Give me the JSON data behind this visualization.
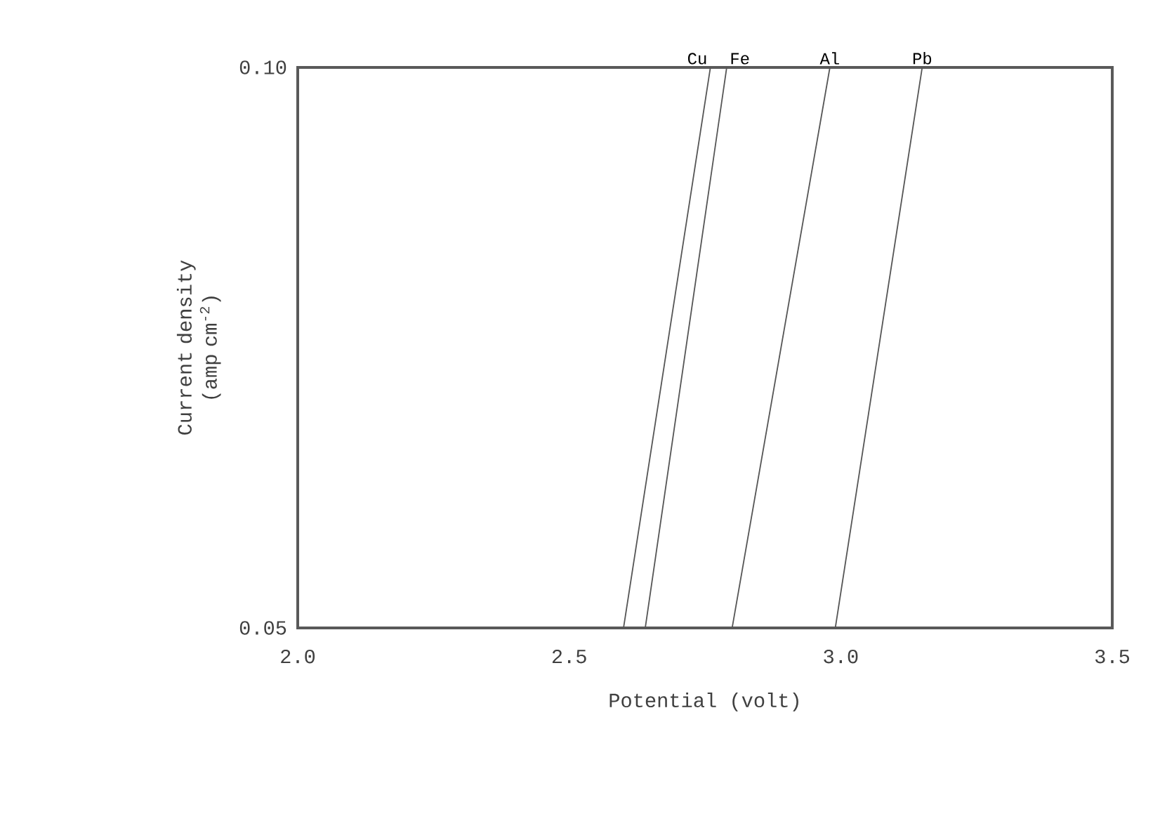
{
  "chart_data": {
    "type": "line",
    "xlabel": "Potential (volt)",
    "ylabel": "Current density (amp cm$^{-2}$)",
    "xlim": [
      2.0,
      3.5
    ],
    "ylim": [
      0.05,
      0.1
    ],
    "xticks": [
      {
        "value": 2.0,
        "label": "2.0"
      },
      {
        "value": 2.5,
        "label": "2.5"
      },
      {
        "value": 3.0,
        "label": "3.0"
      },
      {
        "value": 3.5,
        "label": "3.5"
      }
    ],
    "yticks": [
      0.05,
      {
        "value": 0.1,
        "label": "0.10"
      }
    ],
    "grid": false,
    "legend": false,
    "marker": "none",
    "line_style": "solid",
    "series": [
      {
        "name": "Cu",
        "color": "#555555",
        "x": [
          2.6,
          2.76
        ],
        "values": [
          0.05,
          0.1
        ]
      },
      {
        "name": "Fe",
        "color": "#555555",
        "x": [
          2.64,
          2.79
        ],
        "values": [
          0.05,
          0.1
        ]
      },
      {
        "name": "Al",
        "color": "#555555",
        "x": [
          2.8,
          2.98
        ],
        "values": [
          0.05,
          0.1
        ]
      },
      {
        "name": "Pb",
        "color": "#555555",
        "x": [
          2.99,
          3.15
        ],
        "values": [
          0.05,
          0.1
        ]
      }
    ]
  }
}
